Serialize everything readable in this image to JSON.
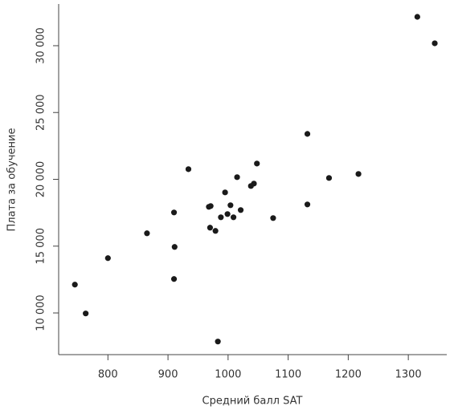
{
  "chart_data": {
    "type": "scatter",
    "x_label": "Средний балл SAT",
    "y_label": "Плата за обучение",
    "color": "#1a1a1a",
    "x": [
      745,
      763,
      800,
      865,
      910,
      911,
      910,
      934,
      968,
      971,
      970,
      979,
      983,
      988,
      995,
      999,
      1004,
      1009,
      1015,
      1021,
      1038,
      1043,
      1048,
      1075,
      1132,
      1132,
      1168,
      1217,
      1315,
      1344
    ],
    "values": [
      12120,
      9960,
      14100,
      15960,
      17520,
      14940,
      12540,
      20760,
      17940,
      18000,
      16380,
      16140,
      7860,
      17160,
      19020,
      17400,
      18060,
      17160,
      20160,
      17700,
      19500,
      19680,
      21180,
      17100,
      23400,
      18120,
      20100,
      20400,
      32160,
      30180
    ],
    "xlim": [
      718,
      1364
    ],
    "ylim": [
      6880,
      33120
    ],
    "xticks": [
      800,
      900,
      1000,
      1100,
      1200,
      1300
    ],
    "yticks": [
      {
        "value": 10000,
        "label": "10 000"
      },
      {
        "value": 15000,
        "label": "15 000"
      },
      {
        "value": 20000,
        "label": "20 000"
      },
      {
        "value": 25000,
        "label": "25 000"
      },
      {
        "value": 30000,
        "label": "30 000"
      }
    ]
  }
}
